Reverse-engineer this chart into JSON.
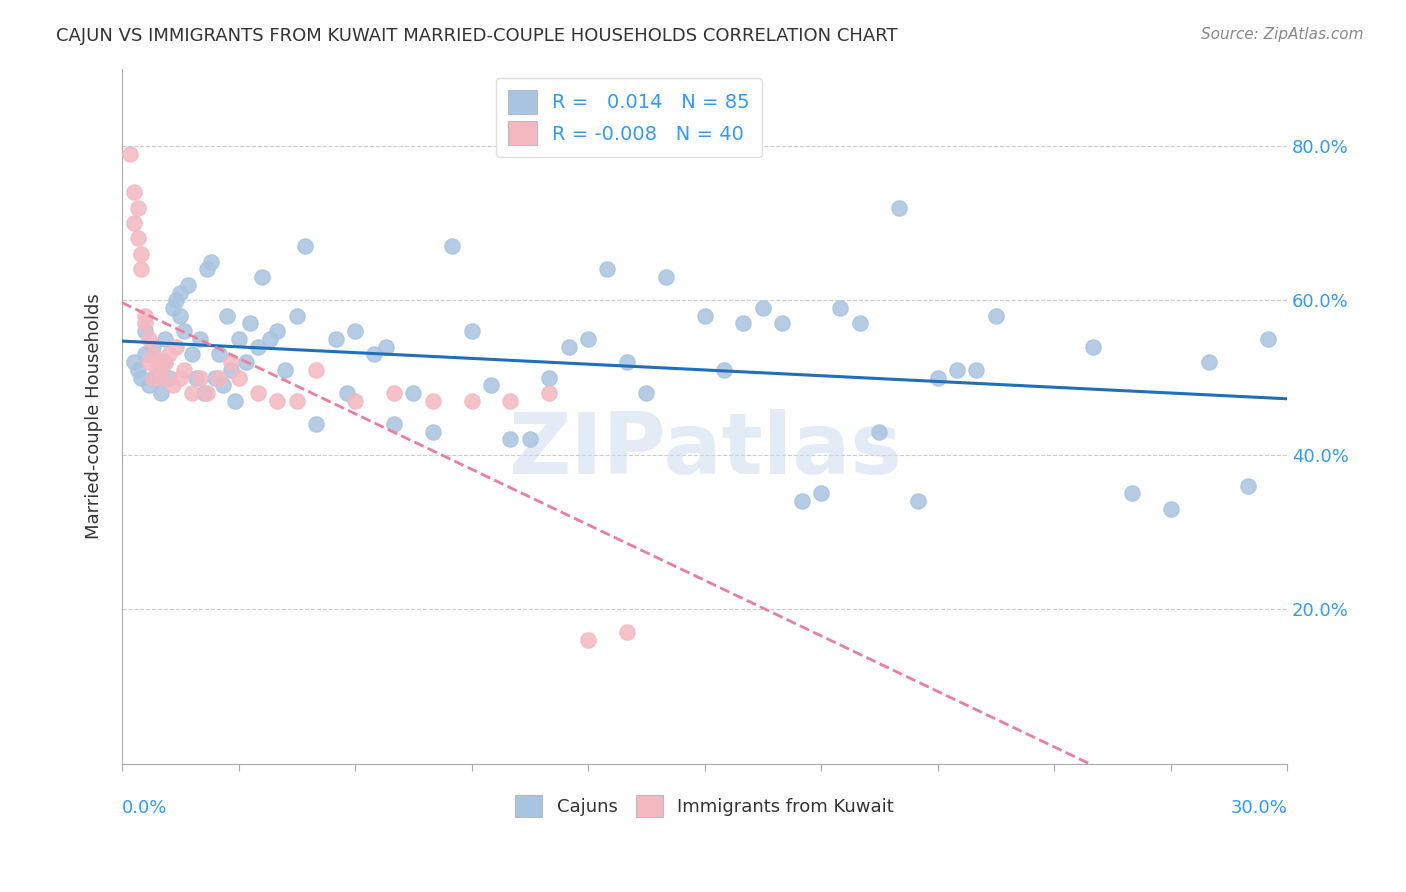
{
  "title": "CAJUN VS IMMIGRANTS FROM KUWAIT MARRIED-COUPLE HOUSEHOLDS CORRELATION CHART",
  "source": "Source: ZipAtlas.com",
  "ylabel": "Married-couple Households",
  "ytick_values": [
    0.2,
    0.4,
    0.6,
    0.8
  ],
  "xlim": [
    0.0,
    0.3
  ],
  "ylim": [
    0.0,
    0.9
  ],
  "cajun_color": "#a8c4e0",
  "kuwait_color": "#f4b8c1",
  "cajun_line_color": "#1f6fbd",
  "kuwait_line_color": "#e87fa0",
  "watermark": "ZIPatlas",
  "background_color": "#ffffff",
  "grid_color": "#cccccc",
  "cajun_x": [
    0.003,
    0.004,
    0.005,
    0.006,
    0.006,
    0.007,
    0.008,
    0.008,
    0.009,
    0.01,
    0.01,
    0.011,
    0.011,
    0.012,
    0.013,
    0.014,
    0.015,
    0.015,
    0.016,
    0.017,
    0.018,
    0.019,
    0.02,
    0.021,
    0.022,
    0.023,
    0.024,
    0.025,
    0.026,
    0.027,
    0.028,
    0.029,
    0.03,
    0.032,
    0.033,
    0.035,
    0.036,
    0.038,
    0.04,
    0.042,
    0.045,
    0.047,
    0.05,
    0.055,
    0.058,
    0.06,
    0.065,
    0.068,
    0.07,
    0.075,
    0.08,
    0.085,
    0.09,
    0.095,
    0.1,
    0.105,
    0.11,
    0.115,
    0.12,
    0.125,
    0.13,
    0.135,
    0.14,
    0.15,
    0.155,
    0.16,
    0.165,
    0.17,
    0.175,
    0.18,
    0.185,
    0.19,
    0.195,
    0.2,
    0.205,
    0.21,
    0.215,
    0.22,
    0.225,
    0.25,
    0.26,
    0.27,
    0.28,
    0.29,
    0.295
  ],
  "cajun_y": [
    0.52,
    0.51,
    0.5,
    0.53,
    0.56,
    0.49,
    0.5,
    0.54,
    0.5,
    0.51,
    0.48,
    0.52,
    0.55,
    0.5,
    0.59,
    0.6,
    0.58,
    0.61,
    0.56,
    0.62,
    0.53,
    0.5,
    0.55,
    0.48,
    0.64,
    0.65,
    0.5,
    0.53,
    0.49,
    0.58,
    0.51,
    0.47,
    0.55,
    0.52,
    0.57,
    0.54,
    0.63,
    0.55,
    0.56,
    0.51,
    0.58,
    0.67,
    0.44,
    0.55,
    0.48,
    0.56,
    0.53,
    0.54,
    0.44,
    0.48,
    0.43,
    0.67,
    0.56,
    0.49,
    0.42,
    0.42,
    0.5,
    0.54,
    0.55,
    0.64,
    0.52,
    0.48,
    0.63,
    0.58,
    0.51,
    0.57,
    0.59,
    0.57,
    0.34,
    0.35,
    0.59,
    0.57,
    0.43,
    0.72,
    0.34,
    0.5,
    0.51,
    0.51,
    0.58,
    0.54,
    0.35,
    0.33,
    0.52,
    0.36,
    0.55
  ],
  "kuwait_x": [
    0.002,
    0.003,
    0.003,
    0.004,
    0.004,
    0.005,
    0.005,
    0.006,
    0.006,
    0.007,
    0.007,
    0.008,
    0.008,
    0.009,
    0.01,
    0.01,
    0.011,
    0.012,
    0.013,
    0.014,
    0.015,
    0.016,
    0.018,
    0.02,
    0.022,
    0.025,
    0.028,
    0.03,
    0.035,
    0.04,
    0.045,
    0.05,
    0.06,
    0.07,
    0.08,
    0.09,
    0.1,
    0.11,
    0.12,
    0.13
  ],
  "kuwait_y": [
    0.79,
    0.74,
    0.7,
    0.72,
    0.68,
    0.66,
    0.64,
    0.57,
    0.58,
    0.55,
    0.52,
    0.53,
    0.5,
    0.52,
    0.5,
    0.51,
    0.52,
    0.53,
    0.49,
    0.54,
    0.5,
    0.51,
    0.48,
    0.5,
    0.48,
    0.5,
    0.52,
    0.5,
    0.48,
    0.47,
    0.47,
    0.51,
    0.47,
    0.48,
    0.47,
    0.47,
    0.47,
    0.48,
    0.16,
    0.17
  ]
}
